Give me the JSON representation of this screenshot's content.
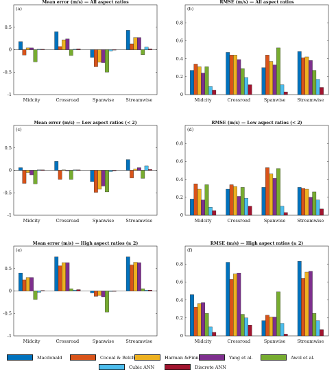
{
  "colors": [
    "#0072BD",
    "#D95319",
    "#EDB120",
    "#7E2F8E",
    "#77AC30",
    "#4DBEEE",
    "#A2142F"
  ],
  "legend": {
    "items": [
      "Macdonald",
      "Coceal & Belcher",
      "Harman &Finnigan",
      "Yang et al.",
      "Awol et al.",
      "Cubic ANN",
      "Discrete ANN"
    ]
  },
  "chart_data": [
    {
      "type": "bar",
      "label": "(a)",
      "title": "Mean error (m/s) — All aspect ratios",
      "categories": [
        "Midcity",
        "Crossroad",
        "Spanwise",
        "Streamwise"
      ],
      "ylim": [
        -1,
        1
      ],
      "yticks": [
        "-1",
        "-0.5",
        "0",
        "0.5"
      ],
      "series": [
        {
          "name": "Macdonald",
          "values": [
            0.18,
            0.4,
            -0.17,
            0.43
          ]
        },
        {
          "name": "Coceal & Belcher",
          "values": [
            -0.12,
            0.07,
            -0.38,
            0.13
          ]
        },
        {
          "name": "Harman &Finnigan",
          "values": [
            0.04,
            0.22,
            -0.28,
            0.27
          ]
        },
        {
          "name": "Yang et al.",
          "values": [
            0.04,
            0.24,
            -0.29,
            0.27
          ]
        },
        {
          "name": "Awol et al.",
          "values": [
            -0.27,
            -0.13,
            -0.5,
            -0.11
          ]
        },
        {
          "name": "Cubic ANN",
          "values": [
            0.01,
            0.01,
            -0.03,
            0.06
          ]
        },
        {
          "name": "Discrete ANN",
          "values": [
            0.01,
            0.02,
            0.0,
            0.02
          ]
        }
      ]
    },
    {
      "type": "bar",
      "label": "(b)",
      "title": "RMSE (m/s) — All aspect ratios",
      "categories": [
        "Midcity",
        "Crossroad",
        "Spanwise",
        "Streamwise"
      ],
      "ylim": [
        0,
        1
      ],
      "yticks": [
        "0",
        "0.2",
        "0.4",
        "0.6",
        "0.8"
      ],
      "series": [
        {
          "name": "Macdonald",
          "values": [
            0.27,
            0.47,
            0.3,
            0.48
          ]
        },
        {
          "name": "Coceal & Belcher",
          "values": [
            0.34,
            0.44,
            0.44,
            0.41
          ]
        },
        {
          "name": "Harman &Finnigan",
          "values": [
            0.31,
            0.44,
            0.37,
            0.42
          ]
        },
        {
          "name": "Yang et al.",
          "values": [
            0.24,
            0.39,
            0.33,
            0.38
          ]
        },
        {
          "name": "Awol et al.",
          "values": [
            0.31,
            0.29,
            0.52,
            0.27
          ]
        },
        {
          "name": "Cubic ANN",
          "values": [
            0.09,
            0.19,
            0.11,
            0.17
          ]
        },
        {
          "name": "Discrete ANN",
          "values": [
            0.05,
            0.11,
            0.03,
            0.08
          ]
        }
      ]
    },
    {
      "type": "bar",
      "label": "(c)",
      "title": "Mean error (m/s) — Low aspect ratios (< 2)",
      "categories": [
        "Midcity",
        "Crossroad",
        "Spanwise",
        "Streamwise"
      ],
      "ylim": [
        -1,
        1
      ],
      "yticks": [
        "-1",
        "-0.5",
        "0",
        "0.5"
      ],
      "series": [
        {
          "name": "Macdonald",
          "values": [
            0.06,
            0.2,
            -0.25,
            0.24
          ]
        },
        {
          "name": "Coceal & Belcher",
          "values": [
            -0.29,
            -0.2,
            -0.49,
            -0.17
          ]
        },
        {
          "name": "Harman &Finnigan",
          "values": [
            -0.05,
            0.01,
            -0.42,
            0.03
          ]
        },
        {
          "name": "Yang et al.",
          "values": [
            -0.1,
            -0.01,
            -0.35,
            0.06
          ]
        },
        {
          "name": "Awol et al.",
          "values": [
            -0.3,
            -0.2,
            -0.48,
            -0.18
          ]
        },
        {
          "name": "Cubic ANN",
          "values": [
            0.01,
            0.01,
            -0.03,
            0.1
          ]
        },
        {
          "name": "Discrete ANN",
          "values": [
            0.01,
            0.01,
            0.0,
            0.02
          ]
        }
      ]
    },
    {
      "type": "bar",
      "label": "(d)",
      "title": "RMSE (m/s) — Low aspect ratios (< 2)",
      "categories": [
        "Midcity",
        "Crossroad",
        "Spanwise",
        "Streamwise"
      ],
      "ylim": [
        0,
        1
      ],
      "yticks": [
        "0",
        "0.2",
        "0.4",
        "0.6",
        "0.8"
      ],
      "series": [
        {
          "name": "Macdonald",
          "values": [
            0.18,
            0.29,
            0.31,
            0.31
          ]
        },
        {
          "name": "Coceal & Belcher",
          "values": [
            0.35,
            0.34,
            0.53,
            0.3
          ]
        },
        {
          "name": "Harman &Finnigan",
          "values": [
            0.29,
            0.32,
            0.46,
            0.29
          ]
        },
        {
          "name": "Yang et al.",
          "values": [
            0.17,
            0.21,
            0.41,
            0.2
          ]
        },
        {
          "name": "Awol et al.",
          "values": [
            0.34,
            0.31,
            0.52,
            0.26
          ]
        },
        {
          "name": "Cubic ANN",
          "values": [
            0.09,
            0.19,
            0.1,
            0.17
          ]
        },
        {
          "name": "Discrete ANN",
          "values": [
            0.05,
            0.1,
            0.03,
            0.07
          ]
        }
      ]
    },
    {
      "type": "bar",
      "label": "(e)",
      "title": "Mean error (m/s) — High aspect ratios (≥ 2)",
      "categories": [
        "Midcity",
        "Crossroad",
        "Spanwise",
        "Streamwise"
      ],
      "ylim": [
        -1,
        1
      ],
      "yticks": [
        "-1",
        "-0.5",
        "0",
        "0.5"
      ],
      "series": [
        {
          "name": "Macdonald",
          "values": [
            0.4,
            0.76,
            -0.04,
            0.76
          ]
        },
        {
          "name": "Coceal & Belcher",
          "values": [
            0.25,
            0.56,
            -0.12,
            0.58
          ]
        },
        {
          "name": "Harman &Finnigan",
          "values": [
            0.3,
            0.63,
            -0.1,
            0.64
          ]
        },
        {
          "name": "Yang et al.",
          "values": [
            0.3,
            0.63,
            -0.13,
            0.63
          ]
        },
        {
          "name": "Awol et al.",
          "values": [
            -0.19,
            0.05,
            -0.47,
            0.05
          ]
        },
        {
          "name": "Cubic ANN",
          "values": [
            -0.03,
            0.02,
            -0.01,
            0.02
          ]
        },
        {
          "name": "Discrete ANN",
          "values": [
            0.01,
            0.03,
            0.0,
            0.02
          ]
        }
      ]
    },
    {
      "type": "bar",
      "label": "(f)",
      "title": "RMSE (m/s) — High aspect ratios (≥ 2)",
      "categories": [
        "Midcity",
        "Crossroad",
        "Spanwise",
        "Streamwise"
      ],
      "ylim": [
        0,
        1
      ],
      "yticks": [
        "0",
        "0.2",
        "0.4",
        "0.6",
        "0.8"
      ],
      "series": [
        {
          "name": "Macdonald",
          "values": [
            0.46,
            0.82,
            0.17,
            0.83
          ]
        },
        {
          "name": "Coceal & Belcher",
          "values": [
            0.32,
            0.63,
            0.23,
            0.64
          ]
        },
        {
          "name": "Harman &Finnigan",
          "values": [
            0.36,
            0.69,
            0.21,
            0.71
          ]
        },
        {
          "name": "Yang et al.",
          "values": [
            0.37,
            0.7,
            0.21,
            0.72
          ]
        },
        {
          "name": "Awol et al.",
          "values": [
            0.25,
            0.24,
            0.49,
            0.25
          ]
        },
        {
          "name": "Cubic ANN",
          "values": [
            0.1,
            0.2,
            0.14,
            0.17
          ]
        },
        {
          "name": "Discrete ANN",
          "values": [
            0.04,
            0.12,
            0.02,
            0.07
          ]
        }
      ]
    }
  ]
}
